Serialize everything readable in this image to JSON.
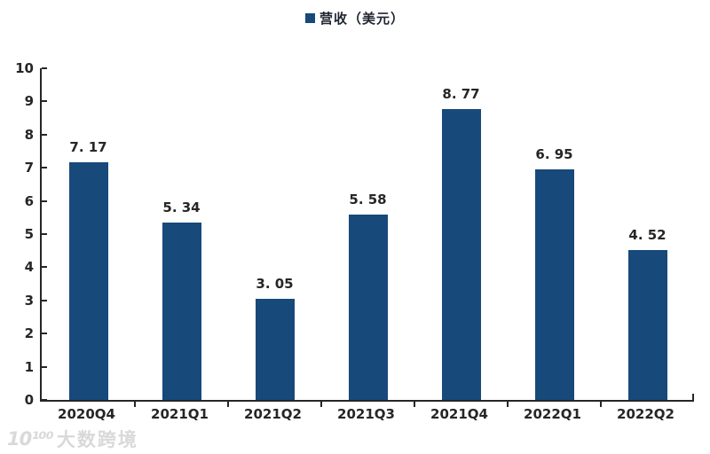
{
  "chart_data": {
    "type": "bar",
    "title": "",
    "legend": "营收（美元）",
    "legend_position": "top-center",
    "categories": [
      "2020Q4",
      "2021Q1",
      "2021Q2",
      "2021Q3",
      "2021Q4",
      "2022Q1",
      "2022Q2"
    ],
    "values": [
      7.17,
      5.34,
      3.05,
      5.58,
      8.77,
      6.95,
      4.52
    ],
    "value_labels": [
      "7. 17",
      "5. 34",
      "3. 05",
      "5. 58",
      "8. 77",
      "6. 95",
      "4. 52"
    ],
    "xlabel": "",
    "ylabel": "",
    "ylim": [
      0,
      10
    ],
    "ytick_interval": 1,
    "yticks": [
      0,
      1,
      2,
      3,
      4,
      5,
      6,
      7,
      8,
      9,
      10
    ],
    "grid": false,
    "bar_color": "#17497B",
    "axis_color": "#262626",
    "label_color": "#262626",
    "background_color": "#FFFFFF"
  },
  "watermark": {
    "logo": "10¹⁰⁰",
    "text": "大数跨境",
    "color": "#D9D9D9"
  }
}
